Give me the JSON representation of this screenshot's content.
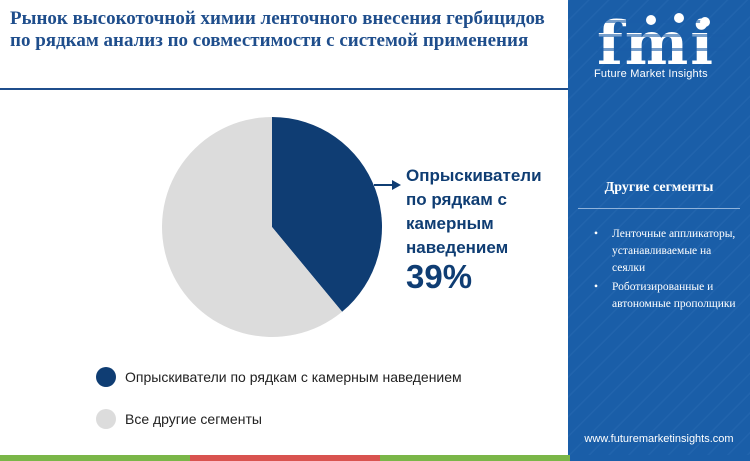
{
  "header": {
    "title": "Рынок высокоточной химии ленточного внесения гербицидов по рядкам анализ по совместимости с системой применения"
  },
  "chart_data": {
    "type": "pie",
    "slices": [
      {
        "label": "Опрыскиватели по рядкам с камерным наведением",
        "value": 39,
        "color": "#0f3d73"
      },
      {
        "label": "Все другие сегменты",
        "value": 61,
        "color": "#dcdcdc"
      }
    ],
    "callout": {
      "label": "Опрыскиватели по рядкам с камерным наведением",
      "value": "39%"
    },
    "legend": [
      {
        "label": "Опрыскиватели по рядкам с камерным наведением",
        "color": "#0f3d73"
      },
      {
        "label": "Все другие сегменты",
        "color": "#dcdcdc"
      }
    ],
    "legend_position": "bottom-left"
  },
  "sidebar": {
    "logo_text": "fmi",
    "tagline": "Future Market Insights",
    "heading": "Другие сегменты",
    "items": [
      {
        "bullet": "•",
        "text": "Ленточные аппликаторы, устанавливаемые на сеялки"
      },
      {
        "bullet": "•",
        "text": "Роботизированные и автономные прополщики"
      }
    ],
    "url": "www.futuremarketinsights.com"
  },
  "colors": {
    "brand_blue": "#1a5ea8",
    "dark_blue": "#0f3d73",
    "bar_green": "#7ab648",
    "bar_red": "#d9534f",
    "bar_blue": "#1a5ea8"
  }
}
